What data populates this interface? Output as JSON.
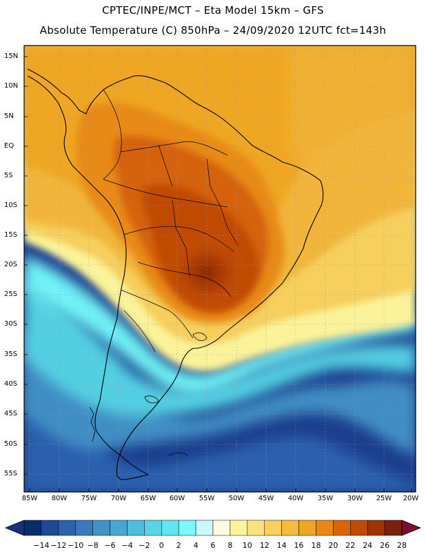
{
  "header": {
    "line1": "CPTEC/INPE/MCT –  Eta Model 15km – GFS",
    "line2": "Absolute Temperature (C) 850hPa – 24/09/2020 12UTC fct=143h"
  },
  "axes": {
    "lat_labels": [
      "15N",
      "10N",
      "5N",
      "EQ",
      "5S",
      "10S",
      "15S",
      "20S",
      "25S",
      "30S",
      "35S",
      "40S",
      "45S",
      "50S",
      "55S"
    ],
    "lon_labels": [
      "85W",
      "80W",
      "75W",
      "70W",
      "65W",
      "60W",
      "55W",
      "50W",
      "45W",
      "40W",
      "35W",
      "30W",
      "25W",
      "20W"
    ]
  },
  "colorbar": {
    "labels": [
      "-14",
      "-12",
      "-10",
      "-8",
      "-6",
      "-4",
      "-2",
      "0",
      "2",
      "4",
      "6",
      "8",
      "10",
      "12",
      "14",
      "16",
      "18",
      "20",
      "22",
      "24",
      "26",
      "28"
    ],
    "colors": [
      "#0c2b6b",
      "#1f4996",
      "#2c62ae",
      "#3b79bd",
      "#4292c5",
      "#46a8d0",
      "#4dbedb",
      "#58d4e5",
      "#5fe6ee",
      "#7af7f8",
      "#cbf8fb",
      "#fdfbe1",
      "#fbf49a",
      "#fae27c",
      "#f6cf5d",
      "#f2bd3e",
      "#efa620",
      "#ea8813",
      "#d96508",
      "#c04b03",
      "#9e3501",
      "#7b1f0e"
    ],
    "end_left": "#1a2f82",
    "end_right": "#7a0f2e"
  },
  "palette": {
    "background": "#ffffff",
    "grid": "#9a9a9a",
    "coast": "#000000"
  }
}
